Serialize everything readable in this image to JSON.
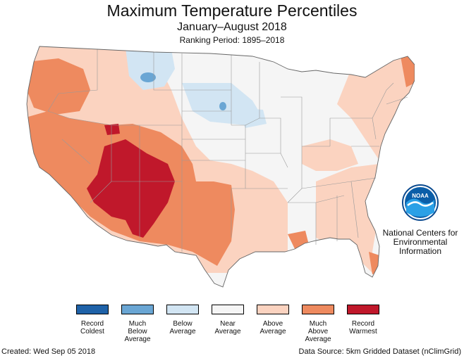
{
  "header": {
    "title": "Maximum Temperature Percentiles",
    "subtitle": "January–August 2018",
    "ranking_period": "Ranking Period: 1895–2018"
  },
  "logo": {
    "icon": "noaa-logo-icon",
    "text": "NOAA"
  },
  "agency": {
    "lines": [
      "National Centers for",
      "Environmental",
      "Information"
    ]
  },
  "legend": [
    {
      "lines": [
        "Record",
        "Coldest"
      ],
      "color": "#1f62a8"
    },
    {
      "lines": [
        "Much",
        "Below",
        "Average"
      ],
      "color": "#6aa6d4"
    },
    {
      "lines": [
        "Below",
        "Average"
      ],
      "color": "#d2e5f3"
    },
    {
      "lines": [
        "Near",
        "Average"
      ],
      "color": "#f5f5f5"
    },
    {
      "lines": [
        "Above",
        "Average"
      ],
      "color": "#fbd3c0"
    },
    {
      "lines": [
        "Much",
        "Above",
        "Average"
      ],
      "color": "#ee8a5f"
    },
    {
      "lines": [
        "Record",
        "Warmest"
      ],
      "color": "#c0182b"
    }
  ],
  "footer": {
    "created": "Created: Wed Sep 05 2018",
    "source": "Data Source: 5km Gridded Dataset (nClimGrid)"
  },
  "map_colors": {
    "near": "#f5f5f5",
    "above": "#fbd3c0",
    "much_above": "#ee8a5f",
    "record_warm": "#c0182b",
    "below": "#d2e5f3",
    "much_below": "#6aa6d4",
    "border": "#9a9a9a"
  }
}
